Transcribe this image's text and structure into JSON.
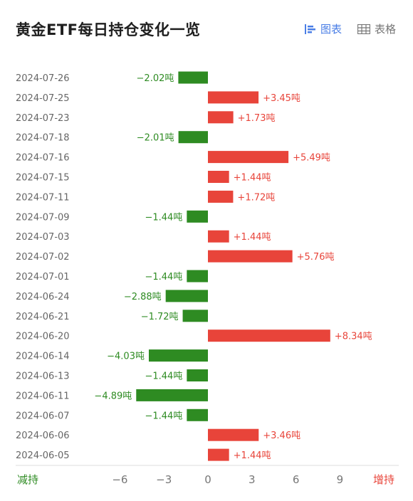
{
  "header": {
    "title": "黄金ETF每日持仓变化一览",
    "view_chart_label": "图表",
    "view_table_label": "表格",
    "chart_icon": "bar-chart-icon",
    "table_icon": "table-icon"
  },
  "colors": {
    "positive": "#e8443a",
    "negative": "#2e8b22",
    "active_tab": "#4a7ee6"
  },
  "chart_data": {
    "type": "bar",
    "orientation": "horizontal",
    "categories": [
      "2024-07-26",
      "2024-07-25",
      "2024-07-23",
      "2024-07-18",
      "2024-07-16",
      "2024-07-15",
      "2024-07-11",
      "2024-07-09",
      "2024-07-03",
      "2024-07-02",
      "2024-07-01",
      "2024-06-24",
      "2024-06-21",
      "2024-06-20",
      "2024-06-14",
      "2024-06-13",
      "2024-06-11",
      "2024-06-07",
      "2024-06-06",
      "2024-06-05"
    ],
    "values": [
      -2.02,
      3.45,
      1.73,
      -2.01,
      5.49,
      1.44,
      1.72,
      -1.44,
      1.44,
      5.76,
      -1.44,
      -2.88,
      -1.72,
      8.34,
      -4.03,
      -1.44,
      -4.89,
      -1.44,
      3.46,
      1.44
    ],
    "labels": [
      "−2.02吨",
      "+3.45吨",
      "+1.73吨",
      "−2.01吨",
      "+5.49吨",
      "+1.44吨",
      "+1.72吨",
      "−1.44吨",
      "+1.44吨",
      "+5.76吨",
      "−1.44吨",
      "−2.88吨",
      "−1.72吨",
      "+8.34吨",
      "−4.03吨",
      "−1.44吨",
      "−4.89吨",
      "−1.44吨",
      "+3.46吨",
      "+1.44吨"
    ],
    "xticks": [
      -6,
      -3,
      0,
      3,
      6,
      9
    ],
    "xtick_labels": [
      "−6",
      "−3",
      "0",
      "3",
      "6",
      "9"
    ],
    "xlim": [
      -7.5,
      10.5
    ],
    "left_axis_label": "减持",
    "right_axis_label": "增持",
    "grid": false
  }
}
